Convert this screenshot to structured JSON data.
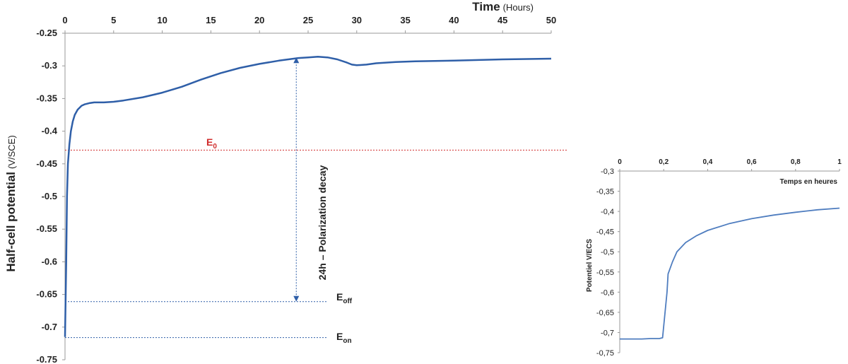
{
  "chart_data": [
    {
      "type": "line",
      "xlabel": "Time",
      "xlabel_unit": "(Hours)",
      "ylabel": "Half-cell potential",
      "ylabel_unit": "(V/SCE)",
      "xlim": [
        0,
        50
      ],
      "ylim": [
        -0.75,
        -0.25
      ],
      "x_ticks": [
        "0",
        "5",
        "10",
        "15",
        "20",
        "25",
        "30",
        "35",
        "40",
        "45",
        "50"
      ],
      "y_ticks": [
        "-0.25",
        "-0.3",
        "-0.35",
        "-0.4",
        "-0.45",
        "-0.5",
        "-0.55",
        "-0.6",
        "-0.65",
        "-0.7",
        "-0.75"
      ],
      "x_axis_position": "top",
      "grid": false,
      "series": [
        {
          "color": "#2f5fa8",
          "x": [
            0,
            0.12,
            0.2,
            0.3,
            0.45,
            0.6,
            0.8,
            1.0,
            1.3,
            1.7,
            2.0,
            2.5,
            3.0,
            4.0,
            5.0,
            6.0,
            8.0,
            10.0,
            12.0,
            14.0,
            16.0,
            18.0,
            20.0,
            22.0,
            24.0,
            25.0,
            26.0,
            27.0,
            28.0,
            29.0,
            29.5,
            30.0,
            31.0,
            32.0,
            34.0,
            36.0,
            40.0,
            45.0,
            50.0
          ],
          "y": [
            -0.715,
            -0.6,
            -0.5,
            -0.45,
            -0.42,
            -0.4,
            -0.385,
            -0.375,
            -0.367,
            -0.361,
            -0.359,
            -0.357,
            -0.356,
            -0.356,
            -0.355,
            -0.353,
            -0.348,
            -0.341,
            -0.332,
            -0.321,
            -0.311,
            -0.303,
            -0.297,
            -0.292,
            -0.288,
            -0.287,
            -0.286,
            -0.287,
            -0.29,
            -0.295,
            -0.298,
            -0.299,
            -0.298,
            -0.296,
            -0.294,
            -0.293,
            -0.292,
            -0.29,
            -0.289
          ]
        }
      ],
      "reference_lines": [
        {
          "label": "E",
          "subscript": "0",
          "y": -0.429,
          "color": "#d02c2c"
        },
        {
          "label": "E",
          "subscript": "off",
          "y": -0.661,
          "color": "#2f5fa8"
        },
        {
          "label": "E",
          "subscript": "on",
          "y": -0.716,
          "color": "#2f5fa8"
        }
      ],
      "annotation": {
        "text": "24h – Polarization decay",
        "x": 24,
        "y_from": -0.661,
        "y_to": -0.287,
        "color": "#2f5fa8"
      }
    },
    {
      "type": "line",
      "xlabel": "Temps en heures",
      "ylabel": "Potentiel V/ECS",
      "xlim": [
        0,
        1
      ],
      "ylim": [
        -0.75,
        -0.3
      ],
      "x_ticks": [
        "0",
        "0,2",
        "0,4",
        "0,6",
        "0,8",
        "1"
      ],
      "y_ticks": [
        "-0,3",
        "-0,35",
        "-0,4",
        "-0,45",
        "-0,5",
        "-0,55",
        "-0,6",
        "-0,65",
        "-0,7",
        "-0,75"
      ],
      "x_axis_position": "top",
      "grid": false,
      "series": [
        {
          "color": "#4f7dbf",
          "x": [
            0,
            0.05,
            0.1,
            0.14,
            0.18,
            0.195,
            0.215,
            0.22,
            0.24,
            0.26,
            0.3,
            0.35,
            0.4,
            0.5,
            0.6,
            0.7,
            0.8,
            0.9,
            1.0
          ],
          "y": [
            -0.716,
            -0.716,
            -0.716,
            -0.715,
            -0.715,
            -0.713,
            -0.6,
            -0.555,
            -0.525,
            -0.5,
            -0.477,
            -0.46,
            -0.447,
            -0.43,
            -0.418,
            -0.409,
            -0.402,
            -0.396,
            -0.392
          ]
        }
      ]
    }
  ]
}
